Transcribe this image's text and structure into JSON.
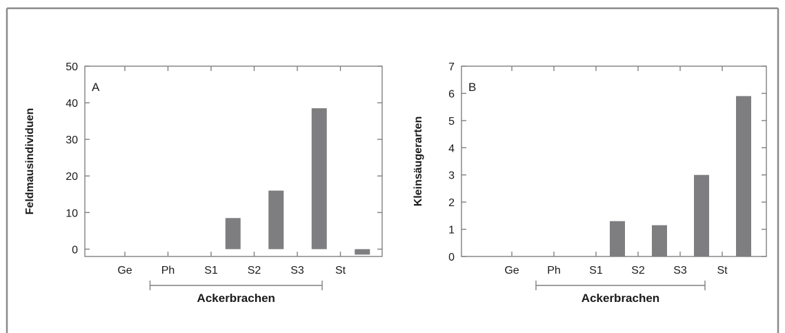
{
  "chart_data": [
    {
      "type": "bar",
      "panel_label": "A",
      "ylabel": "Feldmausindividuen",
      "categories": [
        "Ge",
        "Ph",
        "S1",
        "S2",
        "S3",
        "St"
      ],
      "values": [
        0,
        0,
        8.5,
        16,
        38.5,
        -1.5
      ],
      "ylim": [
        -2,
        50
      ],
      "yticks": [
        0,
        10,
        20,
        30,
        40,
        50
      ],
      "group_label": "Ackerbrachen",
      "group_span": [
        "Ph",
        "S3"
      ],
      "grid": false
    },
    {
      "type": "bar",
      "panel_label": "B",
      "ylabel": "Kleinsäugerarten",
      "categories": [
        "Ge",
        "Ph",
        "S1",
        "S2",
        "S3",
        "St"
      ],
      "values": [
        0,
        0,
        1.3,
        1.15,
        3.0,
        5.9
      ],
      "ylim": [
        0,
        7
      ],
      "yticks": [
        0,
        1,
        2,
        3,
        4,
        5,
        6,
        7
      ],
      "group_label": "Ackerbrachen",
      "group_span": [
        "Ph",
        "S3"
      ],
      "grid": false
    }
  ],
  "colors": {
    "bar": "#7e7e81",
    "axis": "#7f7f7f",
    "frame": "#8a8a8a"
  }
}
